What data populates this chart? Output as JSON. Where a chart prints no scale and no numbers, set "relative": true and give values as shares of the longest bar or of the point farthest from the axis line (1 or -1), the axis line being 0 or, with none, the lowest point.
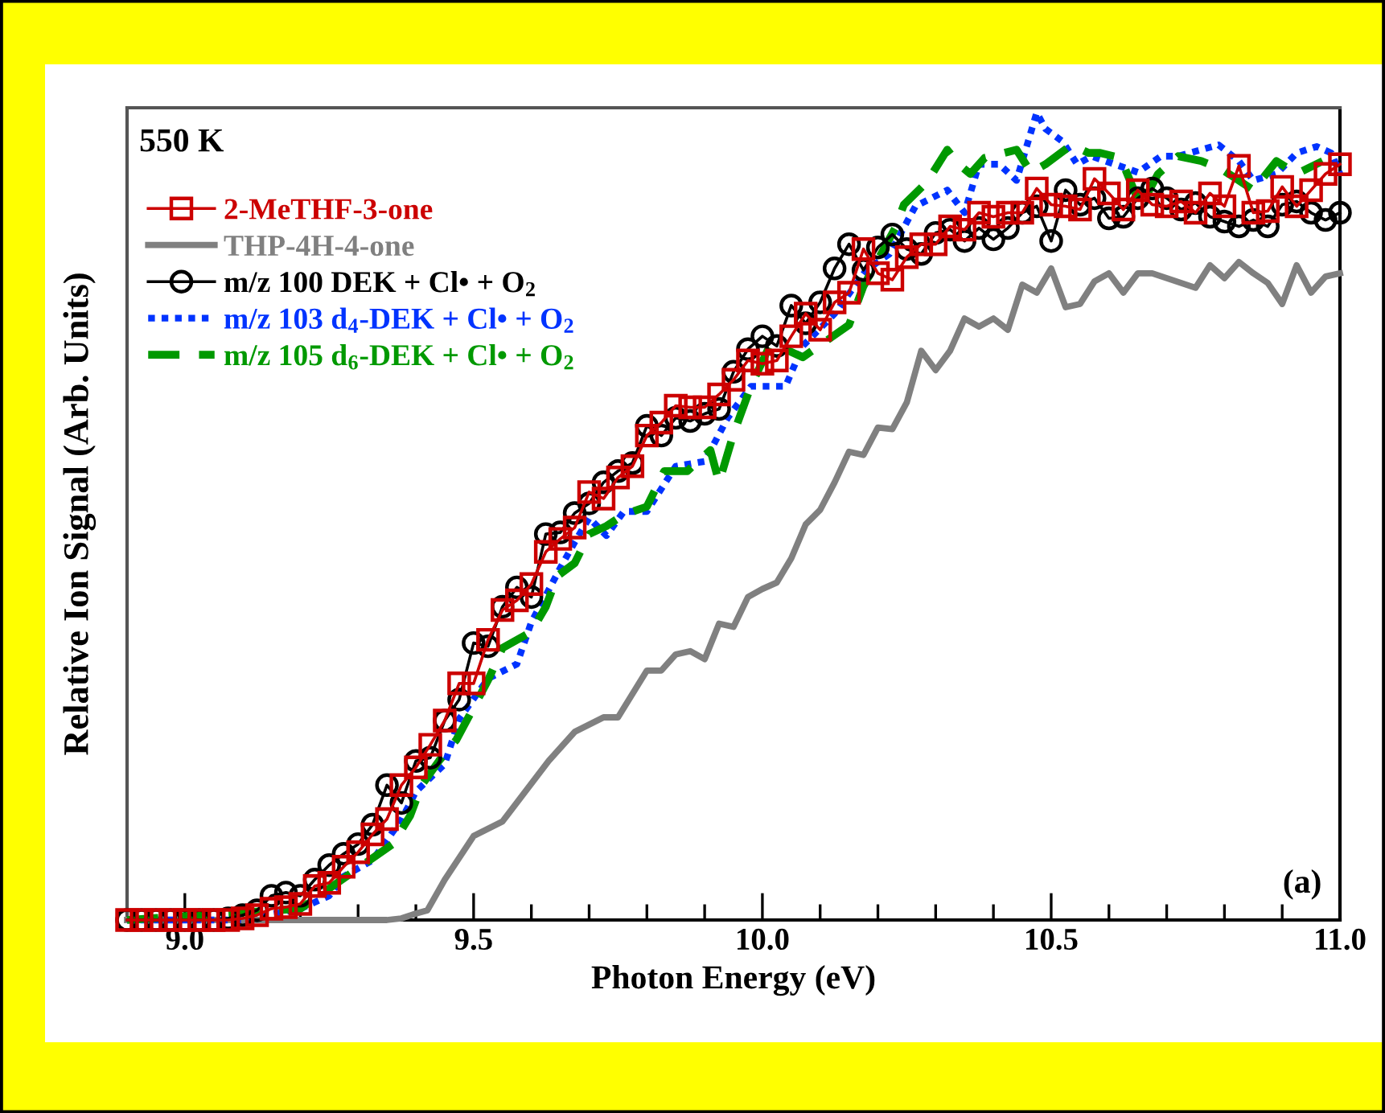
{
  "chart_data": {
    "type": "line",
    "relative": true,
    "xlabel": "Photon Energy (eV)",
    "ylabel": "Relative Ion Signal (Arb. Units)",
    "annotations": [
      "550 K",
      "(a)"
    ],
    "xlim": [
      8.9,
      11.0
    ],
    "xticks": [
      {
        "value": 8.9,
        "label": null
      },
      {
        "value": 9.0,
        "label": "9.0"
      },
      {
        "value": 9.1,
        "label": null
      },
      {
        "value": 9.2,
        "label": null
      },
      {
        "value": 9.3,
        "label": null
      },
      {
        "value": 9.4,
        "label": null
      },
      9.5,
      {
        "value": 9.6,
        "label": null
      },
      {
        "value": 9.7,
        "label": null
      },
      {
        "value": 9.8,
        "label": null
      },
      {
        "value": 9.9,
        "label": null
      },
      {
        "value": 10.0,
        "label": "10.0"
      },
      {
        "value": 10.1,
        "label": null
      },
      {
        "value": 10.2,
        "label": null
      },
      {
        "value": 10.3,
        "label": null
      },
      {
        "value": 10.4,
        "label": null
      },
      10.5,
      {
        "value": 10.6,
        "label": null
      },
      {
        "value": 10.7,
        "label": null
      },
      {
        "value": 10.8,
        "label": null
      },
      {
        "value": 10.9,
        "label": null
      },
      {
        "value": 11.0,
        "label": "11.0"
      }
    ],
    "grid": false,
    "legend": "top left",
    "x": [
      8.9,
      8.925,
      8.95,
      8.975,
      9.0,
      9.025,
      9.05,
      9.075,
      9.1,
      9.125,
      9.15,
      9.175,
      9.2,
      9.225,
      9.25,
      9.275,
      9.3,
      9.325,
      9.35,
      9.375,
      9.4,
      9.425,
      9.45,
      9.475,
      9.5,
      9.525,
      9.55,
      9.575,
      9.6,
      9.625,
      9.65,
      9.675,
      9.7,
      9.725,
      9.75,
      9.775,
      9.8,
      9.825,
      9.85,
      9.875,
      9.9,
      9.925,
      9.95,
      9.975,
      10.0,
      10.025,
      10.05,
      10.075,
      10.1,
      10.125,
      10.15,
      10.175,
      10.2,
      10.225,
      10.25,
      10.275,
      10.3,
      10.325,
      10.35,
      10.375,
      10.4,
      10.425,
      10.45,
      10.475,
      10.5,
      10.525,
      10.55,
      10.575,
      10.6,
      10.625,
      10.65,
      10.675,
      10.7,
      10.725,
      10.75,
      10.775,
      10.8,
      10.825,
      10.85,
      10.875,
      10.9,
      10.925,
      10.95,
      10.975,
      11.0
    ],
    "series": [
      {
        "name": "2-MeTHF-3-one",
        "color": "#cc0000",
        "marker": "square",
        "line_style": "solid",
        "values": [
          0,
          0,
          0,
          0,
          0,
          0,
          0,
          0,
          0.002,
          0.006,
          0.014,
          0.016,
          0.02,
          0.042,
          0.046,
          0.066,
          0.084,
          0.106,
          0.125,
          0.167,
          0.189,
          0.217,
          0.247,
          0.293,
          0.293,
          0.347,
          0.384,
          0.396,
          0.416,
          0.456,
          0.472,
          0.486,
          0.53,
          0.522,
          0.548,
          0.562,
          0.6,
          0.616,
          0.637,
          0.635,
          0.635,
          0.651,
          0.669,
          0.693,
          0.689,
          0.693,
          0.723,
          0.751,
          0.731,
          0.765,
          0.777,
          0.831,
          0.801,
          0.793,
          0.821,
          0.837,
          0.837,
          0.859,
          0.855,
          0.876,
          0.871,
          0.876,
          0.876,
          0.906,
          0.886,
          0.884,
          0.88,
          0.918,
          0.9,
          0.88,
          0.904,
          0.886,
          0.884,
          0.89,
          0.876,
          0.9,
          0.884,
          0.934,
          0.876,
          0.878,
          0.908,
          0.884,
          0.904,
          0.924,
          0.936
        ]
      },
      {
        "name": "THP-4H-4-one",
        "color": "#808080",
        "marker": "none",
        "line_style": "solid",
        "x": [
          8.9,
          9.35,
          9.375,
          9.4,
          9.42,
          9.45,
          9.5,
          9.55,
          9.6,
          9.63,
          9.675,
          9.725,
          9.75,
          9.8,
          9.825,
          9.85,
          9.875,
          9.9,
          9.925,
          9.95,
          9.975,
          10.0,
          10.025,
          10.05,
          10.075,
          10.1,
          10.125,
          10.15,
          10.175,
          10.2,
          10.225,
          10.25,
          10.275,
          10.3,
          10.325,
          10.35,
          10.375,
          10.4,
          10.425,
          10.45,
          10.475,
          10.5,
          10.525,
          10.55,
          10.575,
          10.6,
          10.625,
          10.65,
          10.675,
          10.7,
          10.75,
          10.775,
          10.8,
          10.825,
          10.85,
          10.875,
          10.9,
          10.925,
          10.95,
          10.975,
          11.0
        ],
        "values": [
          0,
          0,
          0.002,
          0.008,
          0.012,
          0.05,
          0.104,
          0.122,
          0.169,
          0.197,
          0.233,
          0.251,
          0.251,
          0.309,
          0.309,
          0.329,
          0.333,
          0.323,
          0.367,
          0.363,
          0.4,
          0.41,
          0.418,
          0.448,
          0.49,
          0.508,
          0.542,
          0.58,
          0.576,
          0.61,
          0.608,
          0.641,
          0.705,
          0.681,
          0.705,
          0.745,
          0.735,
          0.745,
          0.731,
          0.787,
          0.777,
          0.807,
          0.759,
          0.763,
          0.791,
          0.801,
          0.777,
          0.801,
          0.801,
          0.795,
          0.783,
          0.811,
          0.795,
          0.815,
          0.801,
          0.789,
          0.763,
          0.811,
          0.777,
          0.797,
          0.801
        ]
      },
      {
        "name": "m/z 100 DEK + Cl• + O$_{2}$",
        "color": "#000000",
        "marker": "circle",
        "line_style": "solid",
        "values": [
          0,
          0,
          0,
          0,
          0,
          0,
          0,
          0.002,
          0.006,
          0.012,
          0.03,
          0.034,
          0.03,
          0.05,
          0.068,
          0.082,
          0.094,
          0.118,
          0.167,
          0.145,
          0.197,
          0.201,
          0.247,
          0.273,
          0.343,
          0.339,
          0.388,
          0.412,
          0.4,
          0.478,
          0.48,
          0.504,
          0.516,
          0.542,
          0.556,
          0.566,
          0.612,
          0.6,
          0.622,
          0.618,
          0.627,
          0.633,
          0.679,
          0.707,
          0.723,
          0.711,
          0.761,
          0.739,
          0.765,
          0.807,
          0.837,
          0.805,
          0.833,
          0.849,
          0.831,
          0.825,
          0.851,
          0.855,
          0.841,
          0.857,
          0.843,
          0.857,
          0.876,
          0.884,
          0.841,
          0.904,
          0.886,
          0.894,
          0.869,
          0.871,
          0.894,
          0.906,
          0.894,
          0.88,
          0.888,
          0.871,
          0.865,
          0.859,
          0.867,
          0.859,
          0.886,
          0.89,
          0.876,
          0.867,
          0.876
        ]
      },
      {
        "name": "m/z 103 d$_{4}$-DEK + Cl• + O$_{2}$",
        "color": "#0033ff",
        "marker": "none",
        "line_style": "dotted",
        "x": [
          8.9,
          9.1,
          9.2,
          9.25,
          9.275,
          9.3,
          9.325,
          9.375,
          9.4,
          9.45,
          9.475,
          9.525,
          9.575,
          9.6,
          9.625,
          9.65,
          9.675,
          9.7,
          9.73,
          9.76,
          9.8,
          9.85,
          9.9,
          9.94,
          9.98,
          10.04,
          10.07,
          10.125,
          10.18,
          10.22,
          10.265,
          10.32,
          10.35,
          10.375,
          10.41,
          10.44,
          10.475,
          10.49,
          10.52,
          10.545,
          10.57,
          10.61,
          10.65,
          10.69,
          10.72,
          10.79,
          10.825,
          10.85,
          10.89,
          10.925,
          10.96,
          10.985,
          11.0
        ],
        "values": [
          0,
          0,
          0.014,
          0.03,
          0.054,
          0.064,
          0.074,
          0.124,
          0.159,
          0.193,
          0.249,
          0.299,
          0.317,
          0.369,
          0.402,
          0.436,
          0.468,
          0.498,
          0.476,
          0.506,
          0.506,
          0.562,
          0.568,
          0.622,
          0.661,
          0.661,
          0.711,
          0.751,
          0.805,
          0.825,
          0.884,
          0.904,
          0.876,
          0.936,
          0.936,
          0.916,
          1.0,
          0.98,
          0.964,
          0.936,
          0.946,
          0.936,
          0.926,
          0.946,
          0.946,
          0.96,
          0.94,
          0.916,
          0.924,
          0.95,
          0.958,
          0.95,
          0.924
        ]
      },
      {
        "name": "m/z 105 d$_{6}$-DEK + Cl• + O$_{2}$",
        "color": "#009900",
        "marker": "none",
        "line_style": "dashed",
        "x": [
          8.9,
          9.2,
          9.3,
          9.36,
          9.39,
          9.41,
          9.44,
          9.47,
          9.5,
          9.525,
          9.55,
          9.6,
          9.625,
          9.645,
          9.675,
          9.7,
          9.73,
          9.76,
          9.8,
          9.83,
          9.87,
          9.91,
          9.925,
          9.95,
          9.98,
          10.015,
          10.07,
          10.15,
          10.175,
          10.23,
          10.245,
          10.285,
          10.32,
          10.34,
          10.36,
          10.385,
          10.44,
          10.465,
          10.49,
          10.535,
          10.565,
          10.585,
          10.62,
          10.655,
          10.685,
          10.72,
          10.76,
          10.795,
          10.85,
          10.89,
          10.925,
          10.97
        ],
        "values": [
          0,
          0.014,
          0.064,
          0.094,
          0.129,
          0.167,
          0.197,
          0.223,
          0.263,
          0.297,
          0.337,
          0.357,
          0.388,
          0.426,
          0.442,
          0.478,
          0.488,
          0.502,
          0.512,
          0.556,
          0.556,
          0.582,
          0.542,
          0.602,
          0.661,
          0.715,
          0.697,
          0.737,
          0.785,
          0.857,
          0.886,
          0.914,
          0.954,
          0.936,
          0.924,
          0.944,
          0.954,
          0.926,
          0.936,
          0.96,
          0.95,
          0.95,
          0.944,
          0.884,
          0.924,
          0.946,
          0.94,
          0.93,
          0.904,
          0.94,
          0.924,
          0.94
        ]
      }
    ]
  }
}
